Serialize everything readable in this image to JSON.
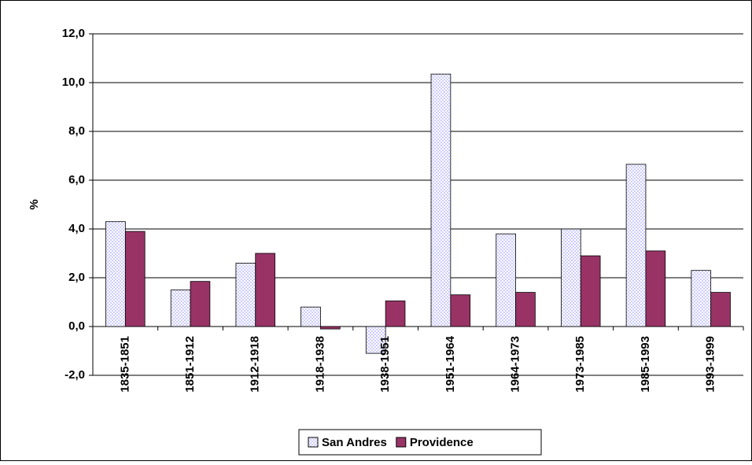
{
  "chart_data": {
    "type": "bar",
    "y_label": "%",
    "categories": [
      "1835-1851",
      "1851-1912",
      "1912-1918",
      "1918-1938",
      "1938-1951",
      "1951-1964",
      "1964-1973",
      "1973-1985",
      "1985-1993",
      "1993-1999"
    ],
    "series": [
      {
        "name": "San Andres",
        "color": "#ccccff",
        "values": [
          4.3,
          1.5,
          2.6,
          0.8,
          -1.1,
          10.35,
          3.8,
          4.0,
          6.65,
          2.3
        ]
      },
      {
        "name": "Providence",
        "color": "#993366",
        "values": [
          3.9,
          1.85,
          3.0,
          -0.1,
          1.05,
          1.3,
          1.4,
          2.9,
          3.1,
          1.4
        ]
      }
    ],
    "ylim": [
      -2,
      12
    ],
    "yticks": [
      {
        "value": -2,
        "label": "-2,0"
      },
      {
        "value": 0,
        "label": "0,0"
      },
      {
        "value": 2,
        "label": "2,0"
      },
      {
        "value": 4,
        "label": "4,0"
      },
      {
        "value": 6,
        "label": "6,0"
      },
      {
        "value": 8,
        "label": "8,0"
      },
      {
        "value": 10,
        "label": "10,0"
      },
      {
        "value": 12,
        "label": "12,0"
      }
    ],
    "grid": true
  }
}
